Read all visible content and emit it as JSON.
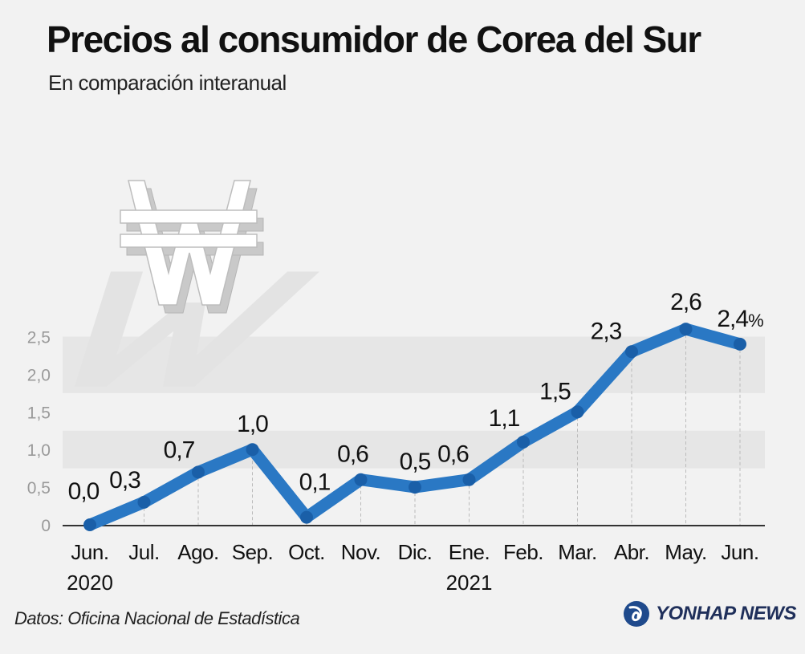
{
  "chart_data": {
    "type": "line",
    "title": "Precios al consumidor de Corea del Sur",
    "subtitle": "En comparación interanual",
    "categories": [
      "Jun.",
      "Jul.",
      "Ago.",
      "Sep.",
      "Oct.",
      "Nov.",
      "Dic.",
      "Ene.",
      "Feb.",
      "Mar.",
      "Abr.",
      "May.",
      "Jun."
    ],
    "year_labels": [
      {
        "index": 0,
        "label": "2020"
      },
      {
        "index": 7,
        "label": "2021"
      }
    ],
    "data_labels": [
      "0,0",
      "0,3",
      "0,7",
      "1,0",
      "0,1",
      "0,6",
      "0,5",
      "0,6",
      "1,1",
      "1,5",
      "2,3",
      "2,6",
      "2,4"
    ],
    "last_label_unit": "%",
    "series": [
      {
        "values": [
          0.0,
          0.3,
          0.7,
          1.0,
          0.1,
          0.6,
          0.5,
          0.6,
          1.1,
          1.5,
          2.3,
          2.6,
          2.4
        ]
      }
    ],
    "yticks": [
      {
        "value": 0,
        "label": "0"
      },
      {
        "value": 0.5,
        "label": "0,5"
      },
      {
        "value": 1.0,
        "label": "1,0"
      },
      {
        "value": 1.5,
        "label": "1,5"
      },
      {
        "value": 2.0,
        "label": "2,0"
      },
      {
        "value": 2.5,
        "label": "2,5"
      }
    ],
    "ylim": [
      0,
      2.5
    ],
    "xlabel": "",
    "ylabel": "",
    "grid": false,
    "colors": {
      "line": "#2a78c4",
      "marker": "#1a5fa8",
      "band": "#e6e6e6",
      "background": "#f2f2f2",
      "axis": "#333333",
      "tick_label": "#9a9a9a"
    }
  },
  "footer": {
    "source": "Datos: Oficina Nacional de Estadística",
    "logo_text": "YONHAP NEWS"
  },
  "decoration": {
    "icon": "won-currency-icon"
  }
}
